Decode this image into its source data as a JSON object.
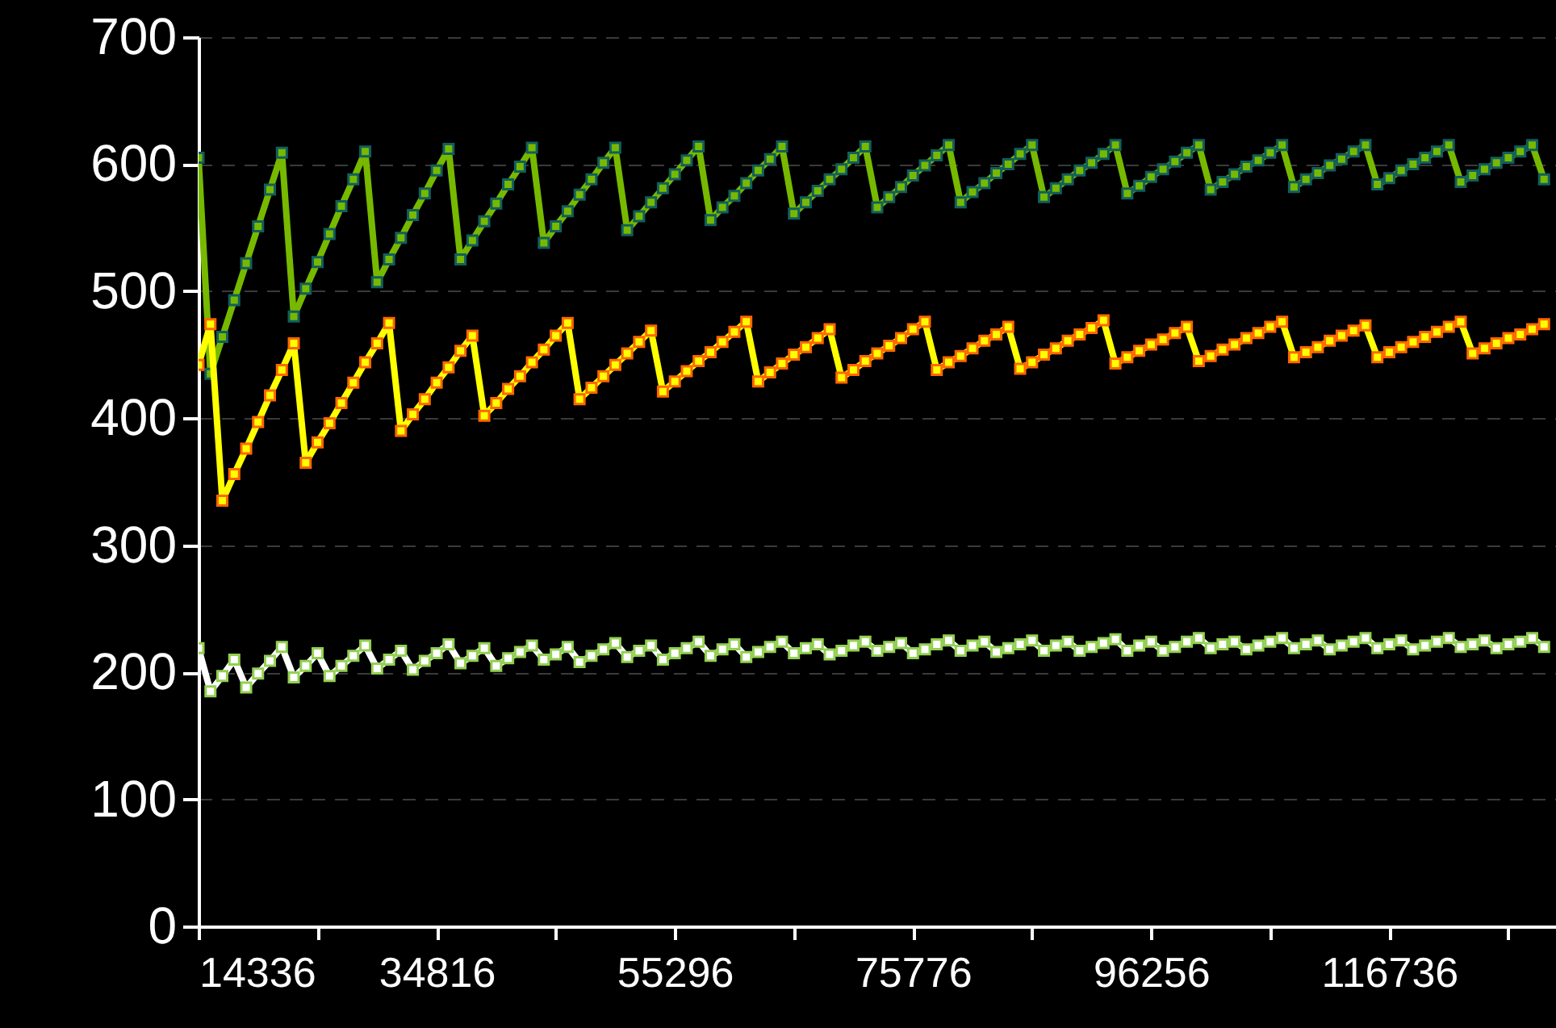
{
  "chart_data": {
    "type": "line",
    "marker": "square",
    "line_style": "solid",
    "grid": "y",
    "xlim": [
      14336,
      131072
    ],
    "ylim": [
      0,
      700
    ],
    "xticks": [
      14336,
      {
        "value": 24576,
        "label": null
      },
      34816,
      {
        "value": 45056,
        "label": null
      },
      55296,
      {
        "value": 65536,
        "label": null
      },
      75776,
      {
        "value": 86016,
        "label": null
      },
      96256,
      {
        "value": 106496,
        "label": null
      },
      116736,
      {
        "value": 126976,
        "label": null
      }
    ],
    "yticks": [
      0,
      100,
      200,
      300,
      400,
      500,
      600,
      700
    ],
    "x": [
      14336,
      15360,
      16384,
      17408,
      18432,
      19456,
      20480,
      21504,
      22528,
      23552,
      24576,
      25600,
      26624,
      27648,
      28672,
      29696,
      30720,
      31744,
      32768,
      33792,
      34816,
      35840,
      36864,
      37888,
      38912,
      39936,
      40960,
      41984,
      43008,
      44032,
      45056,
      46080,
      47104,
      48128,
      49152,
      50176,
      51200,
      52224,
      53248,
      54272,
      55296,
      56320,
      57344,
      58368,
      59392,
      60416,
      61440,
      62464,
      63488,
      64512,
      65536,
      66560,
      67584,
      68608,
      69632,
      70656,
      71680,
      72704,
      73728,
      74752,
      75776,
      76800,
      77824,
      78848,
      79872,
      80896,
      81920,
      82944,
      83968,
      84992,
      86016,
      87040,
      88064,
      89088,
      90112,
      91136,
      92160,
      93184,
      94208,
      95232,
      96256,
      97280,
      98304,
      99328,
      100352,
      101376,
      102400,
      103424,
      104448,
      105472,
      106496,
      107520,
      108544,
      109568,
      110592,
      111616,
      112640,
      113664,
      114688,
      115712,
      116736,
      117760,
      118784,
      119808,
      120832,
      121856,
      122880,
      123904,
      124928,
      125952,
      126976,
      128000,
      129024,
      130048
    ],
    "series": [
      {
        "color": "#76b900",
        "values": [
          605,
          435,
          464,
          493,
          522,
          551,
          580,
          609,
          480,
          502,
          523,
          545,
          567,
          588,
          610,
          507,
          525,
          542,
          560,
          577,
          595,
          612,
          525,
          540,
          555,
          569,
          584,
          598,
          613,
          538,
          551,
          563,
          576,
          588,
          601,
          613,
          548,
          559,
          570,
          581,
          592,
          603,
          614,
          556,
          566,
          575,
          585,
          595,
          604,
          614,
          561,
          570,
          579,
          588,
          596,
          605,
          614,
          566,
          574,
          582,
          591,
          599,
          607,
          615,
          570,
          578,
          585,
          593,
          600,
          608,
          615,
          574,
          581,
          588,
          595,
          601,
          608,
          615,
          577,
          583,
          590,
          596,
          602,
          609,
          615,
          580,
          586,
          592,
          598,
          603,
          609,
          615,
          582,
          588,
          593,
          599,
          604,
          610,
          615,
          584,
          589,
          595,
          600,
          605,
          610,
          615,
          586,
          591,
          596,
          601,
          605,
          610,
          615,
          588
        ]
      },
      {
        "color": "#ffff00",
        "values": [
          442,
          474,
          335,
          356,
          376,
          397,
          418,
          438,
          459,
          365,
          381,
          396,
          412,
          428,
          444,
          459,
          475,
          390,
          403,
          415,
          428,
          440,
          453,
          465,
          402,
          412,
          423,
          433,
          444,
          454,
          465,
          475,
          415,
          424,
          433,
          442,
          451,
          460,
          469,
          421,
          429,
          437,
          445,
          452,
          460,
          468,
          476,
          429,
          436,
          443,
          450,
          456,
          463,
          470,
          432,
          438,
          445,
          451,
          457,
          463,
          470,
          476,
          438,
          444,
          449,
          455,
          461,
          466,
          472,
          439,
          444,
          450,
          455,
          461,
          466,
          471,
          477,
          443,
          448,
          453,
          458,
          462,
          467,
          472,
          445,
          449,
          454,
          458,
          463,
          467,
          472,
          476,
          448,
          452,
          456,
          461,
          465,
          469,
          473,
          448,
          452,
          456,
          460,
          464,
          468,
          472,
          476,
          451,
          455,
          459,
          463,
          466,
          470,
          474
        ]
      },
      {
        "color": "#ffffff",
        "values": [
          219,
          185,
          197,
          210,
          188,
          199,
          209,
          220,
          196,
          205,
          215,
          197,
          205,
          213,
          221,
          203,
          210,
          217,
          202,
          209,
          215,
          222,
          207,
          213,
          219,
          205,
          211,
          216,
          221,
          210,
          214,
          220,
          208,
          213,
          218,
          223,
          212,
          217,
          221,
          210,
          215,
          219,
          224,
          213,
          218,
          222,
          212,
          216,
          220,
          224,
          215,
          219,
          222,
          214,
          217,
          221,
          224,
          217,
          220,
          223,
          215,
          218,
          222,
          225,
          217,
          221,
          224,
          216,
          219,
          222,
          225,
          217,
          221,
          224,
          217,
          220,
          223,
          226,
          217,
          221,
          224,
          217,
          220,
          224,
          227,
          219,
          222,
          224,
          218,
          221,
          224,
          227,
          219,
          222,
          225,
          218,
          221,
          224,
          227,
          219,
          222,
          225,
          218,
          221,
          224,
          227,
          220,
          222,
          225,
          219,
          222,
          224,
          227,
          220
        ]
      }
    ]
  }
}
